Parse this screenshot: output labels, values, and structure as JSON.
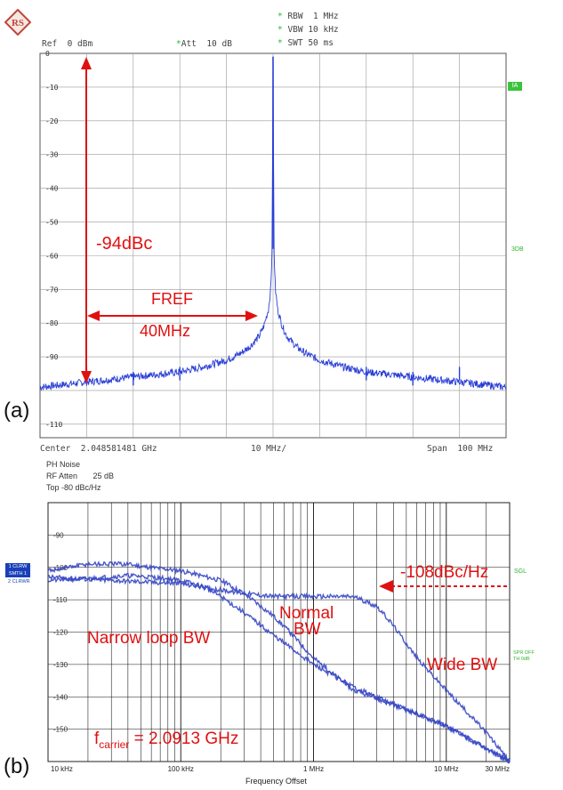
{
  "panel_a": {
    "tag": "(a)",
    "hdr_rbw": "RBW  1 MHz",
    "hdr_vbw": "VBW 10 kHz",
    "hdr_swt": "SWT 50 ms",
    "hdr_ref": "Ref  0 dBm",
    "hdr_att": "Att  10 dB",
    "side_ia": "IA",
    "side_3db": "3DB",
    "foot_center": "Center  2.048581481 GHz",
    "foot_div": "10 MHz/",
    "foot_span": "Span  100 MHz",
    "ann_dbc": "-94dBc",
    "ann_fref": "FREF",
    "ann_40m": "40MHz",
    "colors": {
      "trace": "#2a3fd6",
      "annot": "#e01010",
      "grid": "#999999"
    }
  },
  "panel_b": {
    "tag": "(b)",
    "hdr_title": "PH Noise",
    "hdr_atten": "RF Atten       25 dB",
    "hdr_top": "Top -80 dBc/Hz",
    "side_clrw1": "1 CLRW",
    "side_smth": "SMTH 1",
    "side_clrw2": "2 CLRWR",
    "side_sgl": "SGL",
    "side_spr1": "SPR OFF",
    "side_spr2": "TH 0dB",
    "xaxis_title": "Frequency Offset",
    "ann_108": "-108dBc/Hz",
    "ann_normal1": "Normal",
    "ann_normal2": "BW",
    "ann_narrow": "Narrow loop BW",
    "ann_wide": "Wide BW",
    "ann_fc_pre": "f",
    "ann_fc_sub": "carrier",
    "ann_fc_post": " = 2.0913 GHz",
    "colors": {
      "trace": "#3546c4",
      "annot": "#e01010",
      "grid": "#111111"
    }
  },
  "chart_data": [
    {
      "type": "line",
      "title": "",
      "xlabel": "",
      "ylabel": "",
      "x_unit": "offset from center (MHz)",
      "xlim": [
        -50,
        50
      ],
      "ylim": [
        -114,
        0
      ],
      "yticks": [
        0,
        -10,
        -20,
        -30,
        -40,
        -50,
        -60,
        -70,
        -80,
        -90,
        -110
      ],
      "ytick_labels": [
        "0",
        "-10",
        "-20",
        "-30",
        "-40",
        "-50",
        "-60",
        "-70",
        "-80",
        "-90",
        "-110"
      ],
      "series": [
        {
          "x": [
            -50,
            -40,
            -30,
            -20,
            -15,
            -10,
            -7,
            -5,
            -3,
            -2,
            -1,
            -0.5,
            -0.2,
            0,
            0.2,
            0.5,
            1,
            2,
            3,
            5,
            7,
            10,
            15,
            20,
            30,
            40,
            50
          ],
          "values": [
            -99,
            -97.5,
            -96,
            -94.5,
            -93,
            -91,
            -89,
            -87,
            -84,
            -81,
            -76,
            -70,
            -58,
            -1,
            -58,
            -70,
            -76,
            -81,
            -84,
            -87,
            -89,
            -91,
            -93,
            -94.5,
            -96,
            -97.5,
            -99
          ]
        }
      ],
      "spurs": [
        {
          "x": -40,
          "value": -93
        },
        {
          "x": -30,
          "value": -94.5
        },
        {
          "x": -20,
          "value": -93
        },
        {
          "x": 20,
          "value": -93
        },
        {
          "x": 30,
          "value": -94.5
        },
        {
          "x": 40,
          "value": -93
        }
      ]
    },
    {
      "type": "line",
      "title": "",
      "xlabel": "Frequency Offset",
      "ylabel": "",
      "xscale": "log",
      "xlim": [
        10000,
        30000000
      ],
      "ylim": [
        -160,
        -80
      ],
      "xticks": [
        10000,
        100000,
        1000000,
        10000000,
        30000000
      ],
      "xtick_labels": [
        "10 kHz",
        "100 kHz",
        "1 MHz",
        "10 MHz",
        "30 MHz"
      ],
      "yticks": [
        -90,
        -100,
        -110,
        -120,
        -130,
        -140,
        -150
      ],
      "ytick_labels": [
        "-90",
        "-100",
        "-110",
        "-120",
        "-130",
        "-140",
        "-150"
      ],
      "series": [
        {
          "x": [
            10000,
            20000,
            40000,
            60000,
            100000,
            150000,
            200000,
            300000,
            500000,
            1000000,
            2000000,
            5000000,
            10000000,
            20000000,
            30000000
          ],
          "values": [
            -104,
            -103.5,
            -102.5,
            -103,
            -104,
            -106,
            -109,
            -114,
            -121,
            -130,
            -137,
            -144,
            -149,
            -156,
            -160
          ]
        },
        {
          "x": [
            10000,
            20000,
            40000,
            60000,
            100000,
            200000,
            300000,
            500000,
            700000,
            1000000,
            2000000,
            5000000,
            10000000,
            20000000,
            30000000
          ],
          "values": [
            -101,
            -99,
            -99,
            -100,
            -101,
            -104,
            -108,
            -115,
            -121,
            -128,
            -138,
            -144,
            -149,
            -156,
            -160
          ]
        },
        {
          "x": [
            10000,
            30000,
            100000,
            200000,
            300000,
            500000,
            1000000,
            2000000,
            3000000,
            4000000,
            6000000,
            10000000,
            20000000,
            30000000
          ],
          "values": [
            -103,
            -104,
            -105,
            -107,
            -108,
            -109,
            -109,
            -109,
            -112,
            -118,
            -128,
            -138,
            -151,
            -160
          ]
        }
      ]
    }
  ]
}
